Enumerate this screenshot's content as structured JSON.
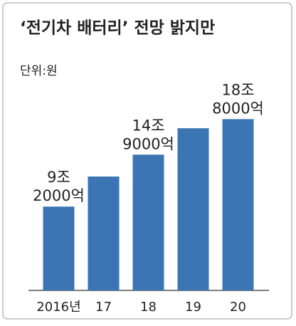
{
  "chart_data": {
    "type": "bar",
    "title": "‘전기차 배터리’ 전망 밝지만",
    "unit": "단위:원",
    "categories": [
      "2016년",
      "17",
      "18",
      "19",
      "20"
    ],
    "values": [
      9.2,
      12.5,
      14.9,
      17.8,
      18.8
    ],
    "value_labels": [
      [
        "9조",
        "2000억"
      ],
      null,
      [
        "14조",
        "9000억"
      ],
      null,
      [
        "18조",
        "8000억"
      ]
    ],
    "color": "#3b75b3",
    "ylim": [
      0,
      20
    ]
  }
}
